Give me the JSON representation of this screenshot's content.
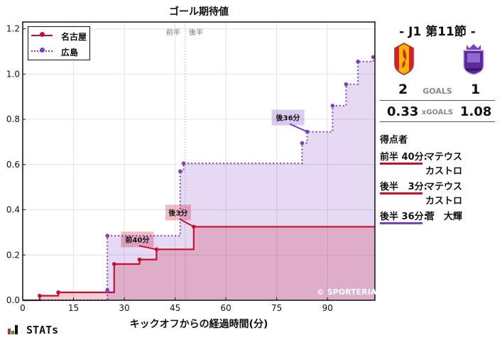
{
  "chart_data": {
    "type": "line",
    "subtype": "step",
    "title": "ゴール期待値",
    "xlabel": "キックオフからの経過時間(分)",
    "ylabel": "",
    "xlim": [
      0,
      104
    ],
    "ylim": [
      0,
      1.23
    ],
    "x_ticks": [
      0,
      15,
      30,
      45,
      60,
      75,
      90
    ],
    "y_ticks": [
      0.0,
      0.2,
      0.4,
      0.6,
      0.8,
      1.0,
      1.2
    ],
    "grid": true,
    "legend_position": "upper left",
    "half_divider": {
      "x": 48,
      "labels": [
        "前半",
        "後半"
      ]
    },
    "series": [
      {
        "name": "名古屋",
        "color": "#c8102e",
        "style": "solid",
        "points": [
          [
            0,
            0
          ],
          [
            5,
            0.02
          ],
          [
            10.5,
            0.035
          ],
          [
            27,
            0.16
          ],
          [
            34.5,
            0.18
          ],
          [
            39.5,
            0.225
          ],
          [
            50.5,
            0.325
          ],
          [
            104,
            0.325
          ]
        ]
      },
      {
        "name": "広島",
        "color": "#7b3fc8",
        "style": "dotted",
        "points": [
          [
            0,
            0
          ],
          [
            25,
            0.045
          ],
          [
            25,
            0.285
          ],
          [
            46.5,
            0.57
          ],
          [
            47.5,
            0.605
          ],
          [
            82.5,
            0.695
          ],
          [
            84,
            0.745
          ],
          [
            91.5,
            0.86
          ],
          [
            95.5,
            0.955
          ],
          [
            99,
            1.055
          ],
          [
            103.5,
            1.075
          ]
        ]
      }
    ],
    "annotations": [
      {
        "text": "前40分",
        "x": 39.5,
        "y": 0.225,
        "team": "名古屋"
      },
      {
        "text": "後3分",
        "x": 50.5,
        "y": 0.325,
        "team": "名古屋"
      },
      {
        "text": "後36分",
        "x": 84,
        "y": 0.745,
        "team": "広島"
      }
    ]
  },
  "chart": {
    "title": "ゴール期待値",
    "xlabel": "キックオフからの経過時間(分)",
    "first_half": "前半",
    "second_half": "後半",
    "copyright": "© SPORTERIA",
    "legend": [
      {
        "label": "名古屋",
        "color": "#c8102e"
      },
      {
        "label": "広島",
        "color": "#7b3fc8"
      }
    ]
  },
  "match": {
    "round": "- J1 第11節 -",
    "home": {
      "name": "名古屋",
      "goals": "2",
      "xg": "0.33",
      "color": "#c8102e"
    },
    "away": {
      "name": "広島",
      "goals": "1",
      "xg": "1.08",
      "color": "#7b3fc8"
    },
    "goals_label": "GOALS",
    "xg_label": "xGOALS"
  },
  "scorers": {
    "title": "得点者",
    "items": [
      {
        "time": "前半 40分:",
        "names": [
          "マテウス",
          "カストロ"
        ],
        "color": "#c8102e"
      },
      {
        "time": "後半   3分:",
        "names": [
          "マテウス",
          "カストロ"
        ],
        "color": "#c8102e"
      },
      {
        "time": "後半 36分:",
        "names": [
          "菅　大輝"
        ],
        "color": "#7b3fc8"
      }
    ]
  },
  "brand": "STATs"
}
